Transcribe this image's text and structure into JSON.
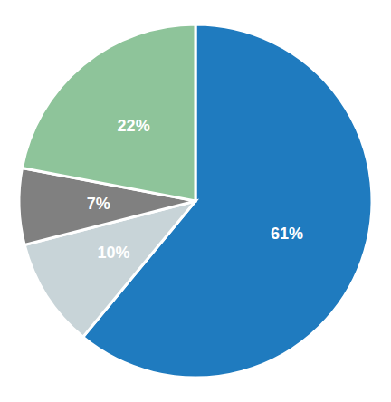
{
  "chart_data": {
    "type": "pie",
    "values": [
      61,
      10,
      7,
      22
    ],
    "value_labels": [
      "61%",
      "10%",
      "7%",
      "22%"
    ],
    "colors": [
      "#1f7bbf",
      "#c8d4d8",
      "#808080",
      "#8ec49a"
    ],
    "data_labels": true
  }
}
